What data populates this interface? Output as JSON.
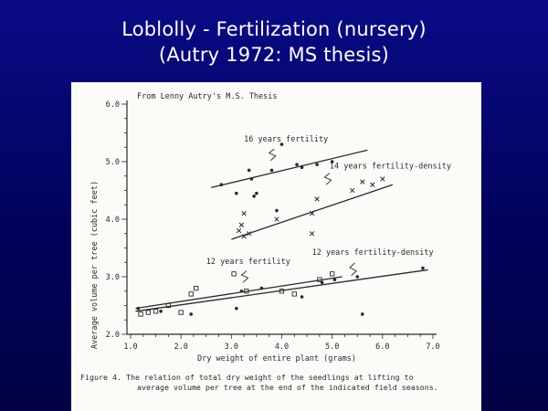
{
  "slide": {
    "title_line1": "Loblolly - Fertilization (nursery)",
    "title_line2": "(Autry 1972: MS thesis)"
  },
  "colors": {
    "background": "#0a0a86",
    "title": "#ffffff",
    "paper": "#fbfbf8",
    "ink": "#2a2a2a"
  },
  "chart_data": {
    "type": "scatter",
    "title": "",
    "source_note": "From Lenny Autry's M.S. Thesis",
    "xlabel": "Dry weight of entire plant (grams)",
    "ylabel": "Average volume per tree (cubic feet)",
    "xlim": [
      1.0,
      7.0
    ],
    "ylim": [
      2.0,
      6.0
    ],
    "x_ticks": [
      "1.0",
      "2.0",
      "3.0",
      "4.0",
      "5.0",
      "6.0",
      "7.0"
    ],
    "y_ticks": [
      "2.0",
      "3.0",
      "4.0",
      "5.0",
      "6.0"
    ],
    "caption_line1": "Figure 4.  The relation of total dry weight of the seedlings at lifting to",
    "caption_line2": "average volume per tree at the end of the indicated field seasons.",
    "series": [
      {
        "name": "16 years fertility",
        "marker": "dot",
        "trend": [
          [
            2.6,
            4.55
          ],
          [
            5.7,
            5.2
          ]
        ],
        "points": [
          [
            2.8,
            4.6
          ],
          [
            3.1,
            4.45
          ],
          [
            3.4,
            4.7
          ],
          [
            3.5,
            4.45
          ],
          [
            3.35,
            4.85
          ],
          [
            3.8,
            4.85
          ],
          [
            4.0,
            5.3
          ],
          [
            4.3,
            4.95
          ],
          [
            4.4,
            4.9
          ],
          [
            4.7,
            4.95
          ],
          [
            5.0,
            5.0
          ],
          [
            3.9,
            4.15
          ],
          [
            3.45,
            4.4
          ]
        ]
      },
      {
        "name": "14 years fertility-density",
        "marker": "x",
        "trend": [
          [
            3.0,
            3.65
          ],
          [
            6.2,
            4.6
          ]
        ],
        "points": [
          [
            3.15,
            3.8
          ],
          [
            3.25,
            3.7
          ],
          [
            3.2,
            3.9
          ],
          [
            3.25,
            4.1
          ],
          [
            3.35,
            3.75
          ],
          [
            3.9,
            4.0
          ],
          [
            4.6,
            4.1
          ],
          [
            4.7,
            4.35
          ],
          [
            5.4,
            4.5
          ],
          [
            5.6,
            4.65
          ],
          [
            6.0,
            4.7
          ],
          [
            5.8,
            4.6
          ],
          [
            4.6,
            3.75
          ]
        ]
      },
      {
        "name": "12 years fertility",
        "marker": "square",
        "trend": [
          [
            1.1,
            2.45
          ],
          [
            5.2,
            3.0
          ]
        ],
        "points": [
          [
            1.2,
            2.35
          ],
          [
            1.35,
            2.38
          ],
          [
            1.5,
            2.4
          ],
          [
            1.75,
            2.5
          ],
          [
            2.0,
            2.38
          ],
          [
            2.2,
            2.7
          ],
          [
            2.3,
            2.8
          ],
          [
            3.05,
            3.05
          ],
          [
            3.3,
            2.75
          ],
          [
            4.0,
            2.75
          ],
          [
            4.25,
            2.7
          ],
          [
            4.75,
            2.95
          ],
          [
            5.0,
            3.05
          ]
        ]
      },
      {
        "name": "12 years fertility-density",
        "marker": "dot",
        "trend": [
          [
            1.1,
            2.4
          ],
          [
            6.9,
            3.12
          ]
        ],
        "points": [
          [
            1.15,
            2.45
          ],
          [
            1.6,
            2.4
          ],
          [
            2.2,
            2.35
          ],
          [
            3.1,
            2.45
          ],
          [
            3.2,
            2.75
          ],
          [
            3.6,
            2.8
          ],
          [
            4.4,
            2.65
          ],
          [
            4.8,
            2.9
          ],
          [
            5.05,
            2.95
          ],
          [
            5.5,
            3.0
          ],
          [
            5.6,
            2.35
          ],
          [
            6.8,
            3.15
          ]
        ]
      }
    ]
  }
}
